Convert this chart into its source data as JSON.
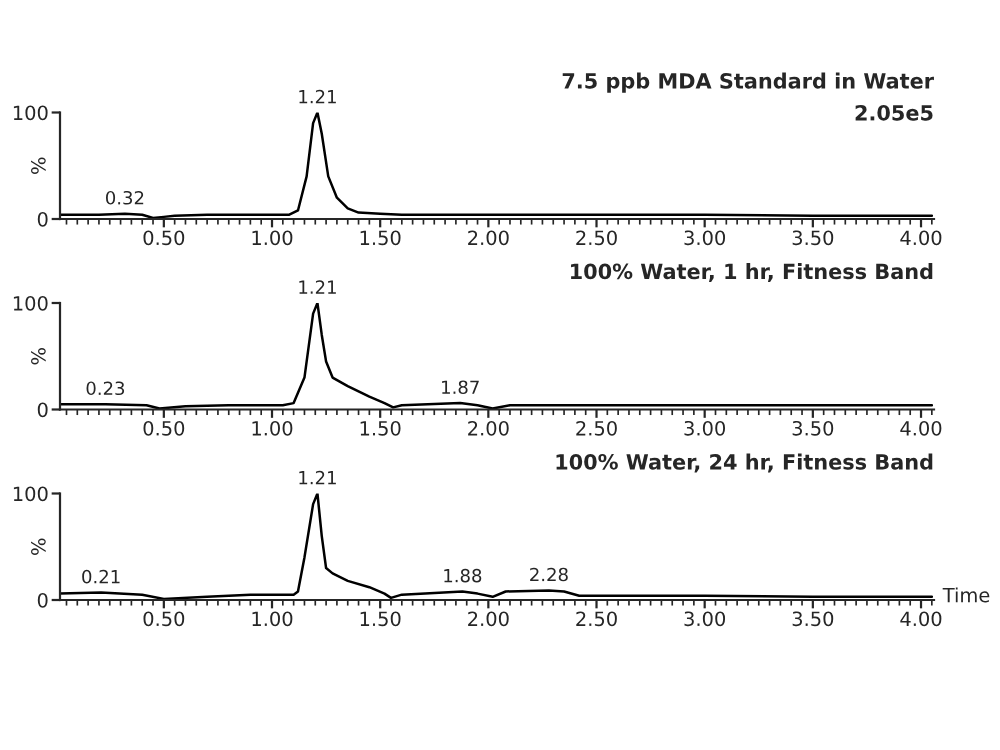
{
  "chart_data": [
    {
      "type": "line",
      "title": "7.5 ppb MDA Standard in Water",
      "subtitle": "2.05e5",
      "ylabel": "%",
      "xlim": [
        0.02,
        4.06
      ],
      "ylim": [
        0,
        100
      ],
      "xticks": [
        {
          "value": 0.05,
          "label": null
        },
        {
          "value": 0.1,
          "label": null
        },
        {
          "value": 0.15,
          "label": null
        },
        {
          "value": 0.2,
          "label": null
        },
        {
          "value": 0.25,
          "label": null
        },
        {
          "value": 0.3,
          "label": null
        },
        {
          "value": 0.35,
          "label": null
        },
        {
          "value": 0.4,
          "label": null
        },
        {
          "value": 0.45,
          "label": null
        },
        {
          "value": 0.5,
          "label": "0.50"
        },
        {
          "value": 0.55,
          "label": null
        },
        {
          "value": 0.6,
          "label": null
        },
        {
          "value": 0.65,
          "label": null
        },
        {
          "value": 0.7,
          "label": null
        },
        {
          "value": 0.75,
          "label": null
        },
        {
          "value": 0.8,
          "label": null
        },
        {
          "value": 0.85,
          "label": null
        },
        {
          "value": 0.9,
          "label": null
        },
        {
          "value": 0.95,
          "label": null
        },
        {
          "value": 1.0,
          "label": "1.00"
        },
        {
          "value": 1.05,
          "label": null
        },
        {
          "value": 1.1,
          "label": null
        },
        {
          "value": 1.15,
          "label": null
        },
        {
          "value": 1.2,
          "label": null
        },
        {
          "value": 1.25,
          "label": null
        },
        {
          "value": 1.3,
          "label": null
        },
        {
          "value": 1.35,
          "label": null
        },
        {
          "value": 1.4,
          "label": null
        },
        {
          "value": 1.45,
          "label": null
        },
        {
          "value": 1.5,
          "label": "1.50"
        },
        {
          "value": 1.55,
          "label": null
        },
        {
          "value": 1.6,
          "label": null
        },
        {
          "value": 1.65,
          "label": null
        },
        {
          "value": 1.7,
          "label": null
        },
        {
          "value": 1.75,
          "label": null
        },
        {
          "value": 1.8,
          "label": null
        },
        {
          "value": 1.85,
          "label": null
        },
        {
          "value": 1.9,
          "label": null
        },
        {
          "value": 1.95,
          "label": null
        },
        {
          "value": 2.0,
          "label": "2.00"
        },
        {
          "value": 2.05,
          "label": null
        },
        {
          "value": 2.1,
          "label": null
        },
        {
          "value": 2.15,
          "label": null
        },
        {
          "value": 2.2,
          "label": null
        },
        {
          "value": 2.25,
          "label": null
        },
        {
          "value": 2.3,
          "label": null
        },
        {
          "value": 2.35,
          "label": null
        },
        {
          "value": 2.4,
          "label": null
        },
        {
          "value": 2.45,
          "label": null
        },
        {
          "value": 2.5,
          "label": "2.50"
        },
        {
          "value": 2.55,
          "label": null
        },
        {
          "value": 2.6,
          "label": null
        },
        {
          "value": 2.65,
          "label": null
        },
        {
          "value": 2.7,
          "label": null
        },
        {
          "value": 2.75,
          "label": null
        },
        {
          "value": 2.8,
          "label": null
        },
        {
          "value": 2.85,
          "label": null
        },
        {
          "value": 2.9,
          "label": null
        },
        {
          "value": 2.95,
          "label": null
        },
        {
          "value": 3.0,
          "label": "3.00"
        },
        {
          "value": 3.05,
          "label": null
        },
        {
          "value": 3.1,
          "label": null
        },
        {
          "value": 3.15,
          "label": null
        },
        {
          "value": 3.2,
          "label": null
        },
        {
          "value": 3.25,
          "label": null
        },
        {
          "value": 3.3,
          "label": null
        },
        {
          "value": 3.35,
          "label": null
        },
        {
          "value": 3.4,
          "label": null
        },
        {
          "value": 3.45,
          "label": null
        },
        {
          "value": 3.5,
          "label": "3.50"
        },
        {
          "value": 3.55,
          "label": null
        },
        {
          "value": 3.6,
          "label": null
        },
        {
          "value": 3.65,
          "label": null
        },
        {
          "value": 3.7,
          "label": null
        },
        {
          "value": 3.75,
          "label": null
        },
        {
          "value": 3.8,
          "label": null
        },
        {
          "value": 3.85,
          "label": null
        },
        {
          "value": 3.9,
          "label": null
        },
        {
          "value": 3.95,
          "label": null
        },
        {
          "value": 4.0,
          "label": "4.00"
        },
        {
          "value": 4.05,
          "label": null
        }
      ],
      "yticks": [
        0,
        100
      ],
      "series": [
        {
          "color": "#000000",
          "x": [
            0.02,
            0.2,
            0.32,
            0.4,
            0.45,
            0.5,
            0.55,
            0.7,
            0.9,
            1.08,
            1.12,
            1.16,
            1.19,
            1.21,
            1.23,
            1.26,
            1.3,
            1.35,
            1.4,
            1.5,
            1.6,
            2.0,
            2.5,
            3.0,
            3.5,
            4.05
          ],
          "values": [
            4,
            4,
            5,
            4,
            1,
            2,
            3,
            4,
            4,
            4,
            8,
            40,
            90,
            100,
            80,
            40,
            20,
            10,
            6,
            5,
            4,
            4,
            4,
            4,
            3,
            3
          ]
        }
      ],
      "annotations": [
        {
          "text": "0.32",
          "x": 0.32,
          "y": 5
        },
        {
          "text": "1.21",
          "x": 1.21,
          "y": 100
        }
      ]
    },
    {
      "type": "line",
      "title": "100% Water, 1 hr, Fitness Band",
      "ylabel": "%",
      "xlim": [
        0.02,
        4.06
      ],
      "ylim": [
        0,
        100
      ],
      "xticks": [
        {
          "value": 0.05,
          "label": null
        },
        {
          "value": 0.1,
          "label": null
        },
        {
          "value": 0.15,
          "label": null
        },
        {
          "value": 0.2,
          "label": null
        },
        {
          "value": 0.25,
          "label": null
        },
        {
          "value": 0.3,
          "label": null
        },
        {
          "value": 0.35,
          "label": null
        },
        {
          "value": 0.4,
          "label": null
        },
        {
          "value": 0.45,
          "label": null
        },
        {
          "value": 0.5,
          "label": "0.50"
        },
        {
          "value": 0.55,
          "label": null
        },
        {
          "value": 0.6,
          "label": null
        },
        {
          "value": 0.65,
          "label": null
        },
        {
          "value": 0.7,
          "label": null
        },
        {
          "value": 0.75,
          "label": null
        },
        {
          "value": 0.8,
          "label": null
        },
        {
          "value": 0.85,
          "label": null
        },
        {
          "value": 0.9,
          "label": null
        },
        {
          "value": 0.95,
          "label": null
        },
        {
          "value": 1.0,
          "label": "1.00"
        },
        {
          "value": 1.05,
          "label": null
        },
        {
          "value": 1.1,
          "label": null
        },
        {
          "value": 1.15,
          "label": null
        },
        {
          "value": 1.2,
          "label": null
        },
        {
          "value": 1.25,
          "label": null
        },
        {
          "value": 1.3,
          "label": null
        },
        {
          "value": 1.35,
          "label": null
        },
        {
          "value": 1.4,
          "label": null
        },
        {
          "value": 1.45,
          "label": null
        },
        {
          "value": 1.5,
          "label": "1.50"
        },
        {
          "value": 1.55,
          "label": null
        },
        {
          "value": 1.6,
          "label": null
        },
        {
          "value": 1.65,
          "label": null
        },
        {
          "value": 1.7,
          "label": null
        },
        {
          "value": 1.75,
          "label": null
        },
        {
          "value": 1.8,
          "label": null
        },
        {
          "value": 1.85,
          "label": null
        },
        {
          "value": 1.9,
          "label": null
        },
        {
          "value": 1.95,
          "label": null
        },
        {
          "value": 2.0,
          "label": "2.00"
        },
        {
          "value": 2.05,
          "label": null
        },
        {
          "value": 2.1,
          "label": null
        },
        {
          "value": 2.15,
          "label": null
        },
        {
          "value": 2.2,
          "label": null
        },
        {
          "value": 2.25,
          "label": null
        },
        {
          "value": 2.3,
          "label": null
        },
        {
          "value": 2.35,
          "label": null
        },
        {
          "value": 2.4,
          "label": null
        },
        {
          "value": 2.45,
          "label": null
        },
        {
          "value": 2.5,
          "label": "2.50"
        },
        {
          "value": 2.55,
          "label": null
        },
        {
          "value": 2.6,
          "label": null
        },
        {
          "value": 2.65,
          "label": null
        },
        {
          "value": 2.7,
          "label": null
        },
        {
          "value": 2.75,
          "label": null
        },
        {
          "value": 2.8,
          "label": null
        },
        {
          "value": 2.85,
          "label": null
        },
        {
          "value": 2.9,
          "label": null
        },
        {
          "value": 2.95,
          "label": null
        },
        {
          "value": 3.0,
          "label": "3.00"
        },
        {
          "value": 3.05,
          "label": null
        },
        {
          "value": 3.1,
          "label": null
        },
        {
          "value": 3.15,
          "label": null
        },
        {
          "value": 3.2,
          "label": null
        },
        {
          "value": 3.25,
          "label": null
        },
        {
          "value": 3.3,
          "label": null
        },
        {
          "value": 3.35,
          "label": null
        },
        {
          "value": 3.4,
          "label": null
        },
        {
          "value": 3.45,
          "label": null
        },
        {
          "value": 3.5,
          "label": "3.50"
        },
        {
          "value": 3.55,
          "label": null
        },
        {
          "value": 3.6,
          "label": null
        },
        {
          "value": 3.65,
          "label": null
        },
        {
          "value": 3.7,
          "label": null
        },
        {
          "value": 3.75,
          "label": null
        },
        {
          "value": 3.8,
          "label": null
        },
        {
          "value": 3.85,
          "label": null
        },
        {
          "value": 3.9,
          "label": null
        },
        {
          "value": 3.95,
          "label": null
        },
        {
          "value": 4.0,
          "label": "4.00"
        },
        {
          "value": 4.05,
          "label": null
        }
      ],
      "yticks": [
        0,
        100
      ],
      "series": [
        {
          "color": "#000000",
          "x": [
            0.02,
            0.23,
            0.42,
            0.48,
            0.6,
            0.8,
            1.05,
            1.1,
            1.15,
            1.19,
            1.21,
            1.23,
            1.25,
            1.28,
            1.35,
            1.45,
            1.52,
            1.56,
            1.6,
            1.87,
            1.95,
            2.02,
            2.1,
            2.5,
            3.0,
            3.5,
            4.05
          ],
          "values": [
            5,
            5,
            4,
            1,
            3,
            4,
            4,
            6,
            30,
            90,
            100,
            70,
            45,
            30,
            22,
            12,
            6,
            2,
            4,
            6,
            4,
            1,
            4,
            4,
            4,
            4,
            4
          ]
        }
      ],
      "annotations": [
        {
          "text": "0.23",
          "x": 0.23,
          "y": 5
        },
        {
          "text": "1.21",
          "x": 1.21,
          "y": 100
        },
        {
          "text": "1.87",
          "x": 1.87,
          "y": 6
        }
      ]
    },
    {
      "type": "line",
      "title": "100% Water, 24 hr, Fitness Band",
      "ylabel": "%",
      "xlabel": "Time",
      "xlim": [
        0.02,
        4.06
      ],
      "ylim": [
        0,
        100
      ],
      "xticks": [
        {
          "value": 0.05,
          "label": null
        },
        {
          "value": 0.1,
          "label": null
        },
        {
          "value": 0.15,
          "label": null
        },
        {
          "value": 0.2,
          "label": null
        },
        {
          "value": 0.25,
          "label": null
        },
        {
          "value": 0.3,
          "label": null
        },
        {
          "value": 0.35,
          "label": null
        },
        {
          "value": 0.4,
          "label": null
        },
        {
          "value": 0.45,
          "label": null
        },
        {
          "value": 0.5,
          "label": "0.50"
        },
        {
          "value": 0.55,
          "label": null
        },
        {
          "value": 0.6,
          "label": null
        },
        {
          "value": 0.65,
          "label": null
        },
        {
          "value": 0.7,
          "label": null
        },
        {
          "value": 0.75,
          "label": null
        },
        {
          "value": 0.8,
          "label": null
        },
        {
          "value": 0.85,
          "label": null
        },
        {
          "value": 0.9,
          "label": null
        },
        {
          "value": 0.95,
          "label": null
        },
        {
          "value": 1.0,
          "label": "1.00"
        },
        {
          "value": 1.05,
          "label": null
        },
        {
          "value": 1.1,
          "label": null
        },
        {
          "value": 1.15,
          "label": null
        },
        {
          "value": 1.2,
          "label": null
        },
        {
          "value": 1.25,
          "label": null
        },
        {
          "value": 1.3,
          "label": null
        },
        {
          "value": 1.35,
          "label": null
        },
        {
          "value": 1.4,
          "label": null
        },
        {
          "value": 1.45,
          "label": null
        },
        {
          "value": 1.5,
          "label": "1.50"
        },
        {
          "value": 1.55,
          "label": null
        },
        {
          "value": 1.6,
          "label": null
        },
        {
          "value": 1.65,
          "label": null
        },
        {
          "value": 1.7,
          "label": null
        },
        {
          "value": 1.75,
          "label": null
        },
        {
          "value": 1.8,
          "label": null
        },
        {
          "value": 1.85,
          "label": null
        },
        {
          "value": 1.9,
          "label": null
        },
        {
          "value": 1.95,
          "label": null
        },
        {
          "value": 2.0,
          "label": "2.00"
        },
        {
          "value": 2.05,
          "label": null
        },
        {
          "value": 2.1,
          "label": null
        },
        {
          "value": 2.15,
          "label": null
        },
        {
          "value": 2.2,
          "label": null
        },
        {
          "value": 2.25,
          "label": null
        },
        {
          "value": 2.3,
          "label": null
        },
        {
          "value": 2.35,
          "label": null
        },
        {
          "value": 2.4,
          "label": null
        },
        {
          "value": 2.45,
          "label": null
        },
        {
          "value": 2.5,
          "label": "2.50"
        },
        {
          "value": 2.55,
          "label": null
        },
        {
          "value": 2.6,
          "label": null
        },
        {
          "value": 2.65,
          "label": null
        },
        {
          "value": 2.7,
          "label": null
        },
        {
          "value": 2.75,
          "label": null
        },
        {
          "value": 2.8,
          "label": null
        },
        {
          "value": 2.85,
          "label": null
        },
        {
          "value": 2.9,
          "label": null
        },
        {
          "value": 2.95,
          "label": null
        },
        {
          "value": 3.0,
          "label": "3.00"
        },
        {
          "value": 3.05,
          "label": null
        },
        {
          "value": 3.1,
          "label": null
        },
        {
          "value": 3.15,
          "label": null
        },
        {
          "value": 3.2,
          "label": null
        },
        {
          "value": 3.25,
          "label": null
        },
        {
          "value": 3.3,
          "label": null
        },
        {
          "value": 3.35,
          "label": null
        },
        {
          "value": 3.4,
          "label": null
        },
        {
          "value": 3.45,
          "label": null
        },
        {
          "value": 3.5,
          "label": "3.50"
        },
        {
          "value": 3.55,
          "label": null
        },
        {
          "value": 3.6,
          "label": null
        },
        {
          "value": 3.65,
          "label": null
        },
        {
          "value": 3.7,
          "label": null
        },
        {
          "value": 3.75,
          "label": null
        },
        {
          "value": 3.8,
          "label": null
        },
        {
          "value": 3.85,
          "label": null
        },
        {
          "value": 3.9,
          "label": null
        },
        {
          "value": 3.95,
          "label": null
        },
        {
          "value": 4.0,
          "label": "4.00"
        },
        {
          "value": 4.05,
          "label": null
        }
      ],
      "yticks": [
        0,
        100
      ],
      "series": [
        {
          "color": "#000000",
          "x": [
            0.02,
            0.21,
            0.4,
            0.5,
            0.7,
            0.9,
            1.1,
            1.12,
            1.15,
            1.19,
            1.21,
            1.23,
            1.25,
            1.28,
            1.35,
            1.45,
            1.52,
            1.55,
            1.6,
            1.88,
            1.95,
            2.02,
            2.08,
            2.28,
            2.35,
            2.42,
            3.0,
            3.5,
            4.05
          ],
          "values": [
            6,
            7,
            5,
            1,
            3,
            5,
            5,
            8,
            40,
            90,
            100,
            60,
            30,
            25,
            18,
            12,
            6,
            2,
            5,
            8,
            6,
            3,
            8,
            9,
            8,
            4,
            4,
            3,
            3
          ]
        }
      ],
      "annotations": [
        {
          "text": "0.21",
          "x": 0.21,
          "y": 7
        },
        {
          "text": "1.21",
          "x": 1.21,
          "y": 100
        },
        {
          "text": "1.88",
          "x": 1.88,
          "y": 8
        },
        {
          "text": "2.28",
          "x": 2.28,
          "y": 9
        }
      ]
    }
  ]
}
